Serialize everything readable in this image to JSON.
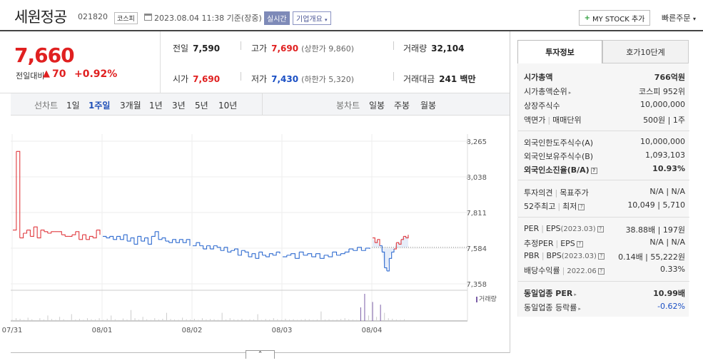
{
  "header": {
    "stock_name": "세원정공",
    "stock_code": "021820",
    "market_badge": "코스피",
    "timestamp": "2023.08.04 11:38 기준(장중)",
    "realtime_badge": "실시간",
    "company_badge": "기업개요",
    "mystock_label": "MY STOCK 추가",
    "quick_order_label": "빠른주문"
  },
  "price": {
    "current": "7,660",
    "change_label": "전일대비",
    "change_arrow": "▲",
    "change_value": "70",
    "change_pct": "+0.92%"
  },
  "quote": {
    "prev_label": "전일",
    "prev_value": "7,590",
    "high_label": "고가",
    "high_value": "7,690",
    "upper_limit": "(상한가 9,860)",
    "volume_label": "거래량",
    "volume_value": "32,104",
    "open_label": "시가",
    "open_value": "7,690",
    "low_label": "저가",
    "low_value": "7,430",
    "lower_limit": "(하한가 5,320)",
    "amount_label": "거래대금",
    "amount_value": "241 백만"
  },
  "toolbar": {
    "line_chart_label": "선차트",
    "periods": [
      "1일",
      "1주일",
      "3개월",
      "1년",
      "3년",
      "5년",
      "10년"
    ],
    "active_period": "1주일",
    "candle_label": "봉차트",
    "candle_periods": [
      "일봉",
      "주봉",
      "월봉"
    ]
  },
  "chart_data": {
    "type": "line",
    "y_ticks": [
      "8,265",
      "8,038",
      "7,811",
      "7,584",
      "7,358"
    ],
    "ylim": [
      7358,
      8265
    ],
    "x_ticks": [
      "07/31",
      "08/01",
      "08/02",
      "08/03",
      "08/04"
    ],
    "reference_price": 7590,
    "volume_legend": "거래량",
    "series": [
      {
        "values": [
          7700,
          8200,
          7650,
          7680,
          7700,
          7660,
          7720,
          7650,
          7700,
          7690,
          7680,
          7690,
          7690,
          7690,
          7670,
          7660,
          7660,
          7670,
          7690,
          7640,
          7670,
          7640,
          7660,
          7650,
          7700,
          7670
        ]
      },
      {
        "values": [
          7660,
          7650,
          7660,
          7640,
          7660,
          7640,
          7670,
          7630,
          7650,
          7610,
          7660,
          7630,
          7650,
          7610,
          7660,
          7690,
          7640,
          7650,
          7630,
          7620,
          7640,
          7620,
          7640,
          7620,
          7640,
          7600
        ]
      },
      {
        "values": [
          7600,
          7620,
          7600,
          7580,
          7600,
          7580,
          7600,
          7590,
          7570,
          7590,
          7560,
          7570,
          7580,
          7540,
          7570,
          7560,
          7530,
          7550,
          7520,
          7560,
          7540,
          7530,
          7550,
          7540,
          7560,
          7550
        ]
      },
      {
        "values": [
          7530,
          7540,
          7550,
          7520,
          7560,
          7540,
          7550,
          7530,
          7550,
          7520,
          7540,
          7530,
          7560,
          7540,
          7550,
          7560,
          7580,
          7570,
          7590,
          7570,
          7585,
          7580
        ]
      },
      {
        "values": [
          7650,
          7620,
          7640,
          7600,
          7560,
          7460,
          7440,
          7520,
          7560,
          7580,
          7620,
          7610,
          7640,
          7660,
          7650,
          7670
        ]
      }
    ]
  },
  "right_panel": {
    "tab_invest": "투자정보",
    "tab_orderbook": "호가10단계",
    "market_cap_label": "시가총액",
    "market_cap_value": "766억원",
    "cap_rank_label": "시가총액순위",
    "cap_rank_value": "코스피 952위",
    "shares_label": "상장주식수",
    "shares_value": "10,000,000",
    "par_label": "액면가",
    "unit_label": "매매단위",
    "par_unit_value": "500원 | 1주",
    "foreign_limit_label": "외국인한도주식수(A)",
    "foreign_limit_value": "10,000,000",
    "foreign_hold_label": "외국인보유주식수(B)",
    "foreign_hold_value": "1,093,103",
    "foreign_ratio_label": "외국인소진율(B/A)",
    "foreign_ratio_value": "10.93%",
    "opinion_label": "투자의견",
    "target_label": "목표주가",
    "opinion_value": "N/A | N/A",
    "w52_label": "52주최고",
    "w52_low_label": "최저",
    "w52_value": "10,049 | 5,710",
    "per_label": "PER",
    "eps_label": "EPS",
    "per_period": "(2023.03)",
    "per_value": "38.88배 | 197원",
    "est_per_label": "추정PER",
    "est_eps_label": "EPS",
    "est_value": "N/A | N/A",
    "pbr_label": "PBR",
    "bps_label": "BPS",
    "pbr_period": "(2023.03)",
    "pbr_value": "0.14배 | 55,222원",
    "div_label": "배당수익률",
    "div_period": "2022.06",
    "div_value": "0.33%",
    "sector_per_label": "동일업종 PER",
    "sector_per_value": "10.99배",
    "sector_rate_label": "동일업종 등락률",
    "sector_rate_value": "-0.62%"
  }
}
